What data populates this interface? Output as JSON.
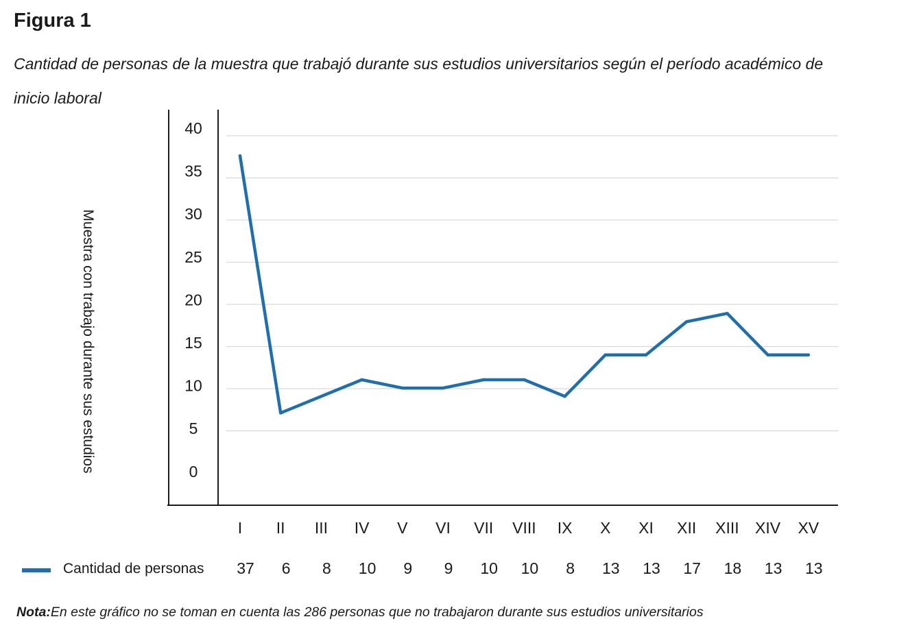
{
  "figure": {
    "label": "Figura 1",
    "caption": "Cantidad de personas de la muestra que trabajó durante sus estudios universitarios según el período académico de inicio laboral"
  },
  "note": {
    "prefix": "Nota:",
    "text": "En este gráfico no se toman en cuenta las 286 personas que no trabajaron durante sus estudios universitarios"
  },
  "chart_data": {
    "type": "line",
    "categories": [
      "I",
      "II",
      "III",
      "IV",
      "V",
      "VI",
      "VII",
      "VIII",
      "IX",
      "X",
      "XI",
      "XII",
      "XIII",
      "XIV",
      "XV"
    ],
    "series": [
      {
        "name": "Cantidad de personas",
        "values": [
          37,
          6,
          8,
          10,
          9,
          9,
          10,
          10,
          8,
          13,
          13,
          17,
          18,
          13,
          13
        ],
        "color": "#1f6eb0"
      }
    ],
    "ylabel": "Muestra con  trabajo durante sus estudios",
    "yticks": [
      "40",
      "35",
      "30",
      "25",
      "20",
      "15",
      "10",
      "5",
      "0"
    ],
    "grid": true,
    "legend": "bottom-left data table",
    "gridColor": "#d9d9d9",
    "axisColor": "#1a1a1a"
  }
}
